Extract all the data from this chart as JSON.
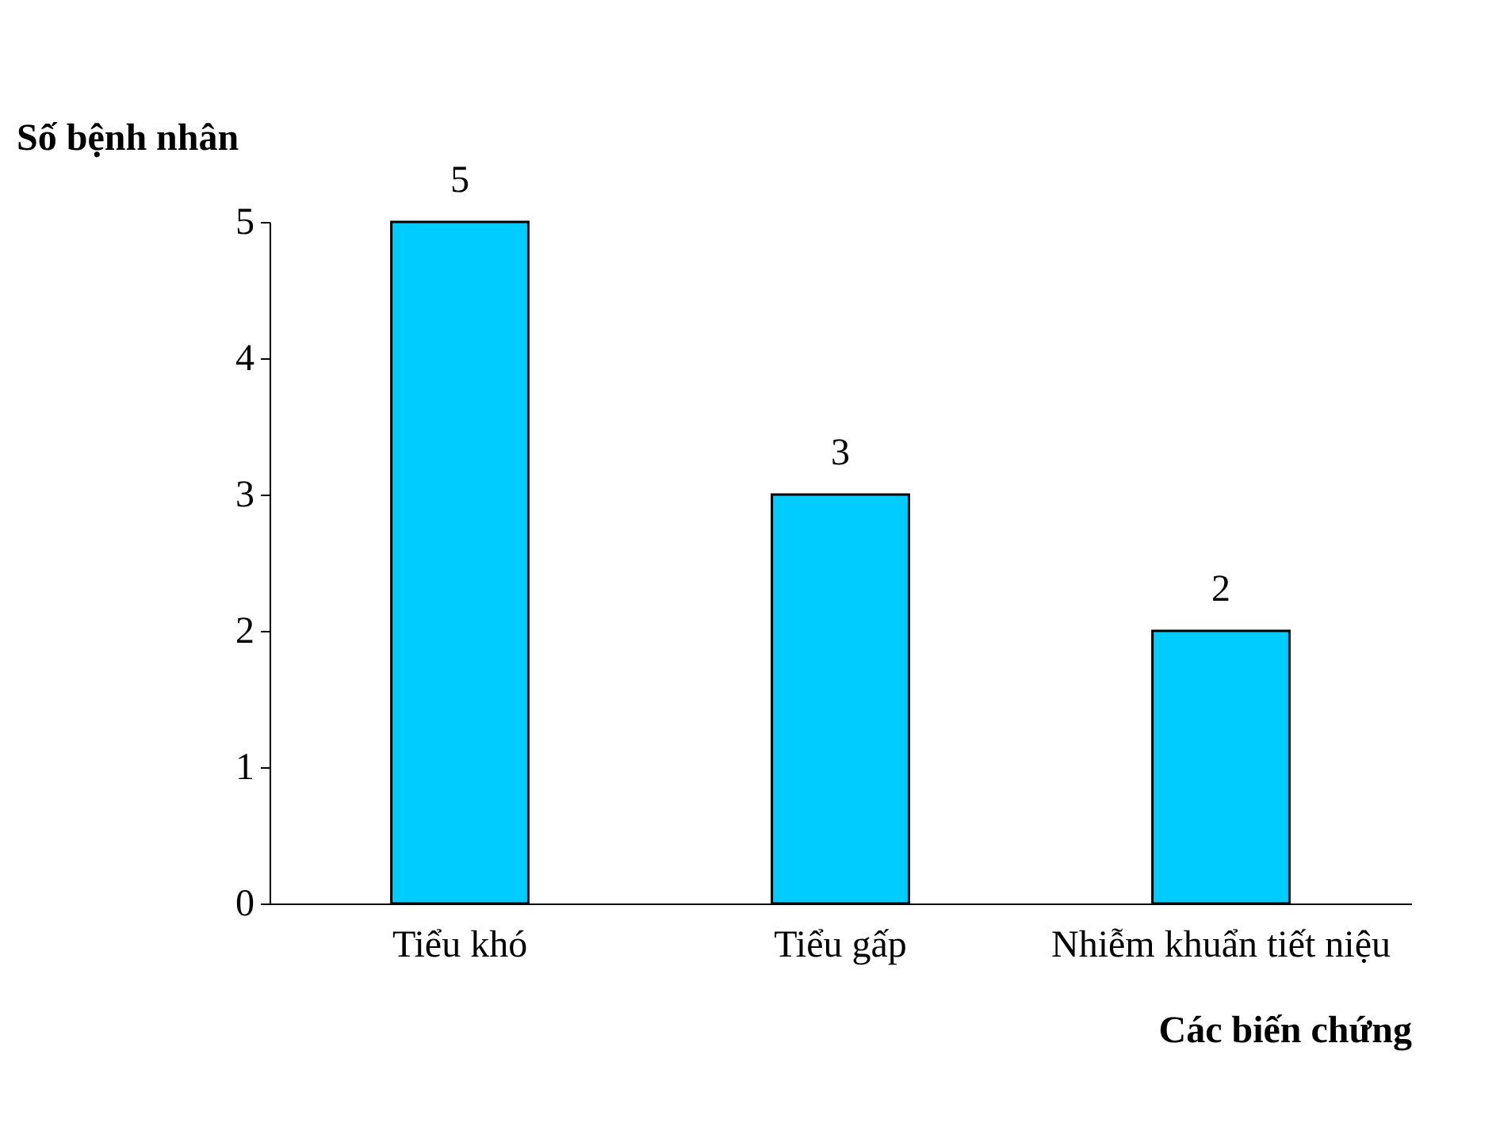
{
  "chart_data": {
    "type": "bar",
    "xlabel": "Các biến chứng",
    "ylabel": "Số bệnh nhân",
    "categories": [
      "Tiểu khó",
      "Tiểu gấp",
      "Nhiễm khuẩn tiết niệu"
    ],
    "values": [
      5,
      3,
      2
    ],
    "color": "#00ccff",
    "ylim": [
      0,
      5
    ],
    "yticks": [
      0,
      1,
      2,
      3,
      4,
      5
    ],
    "data_labels": true,
    "grid": false
  }
}
